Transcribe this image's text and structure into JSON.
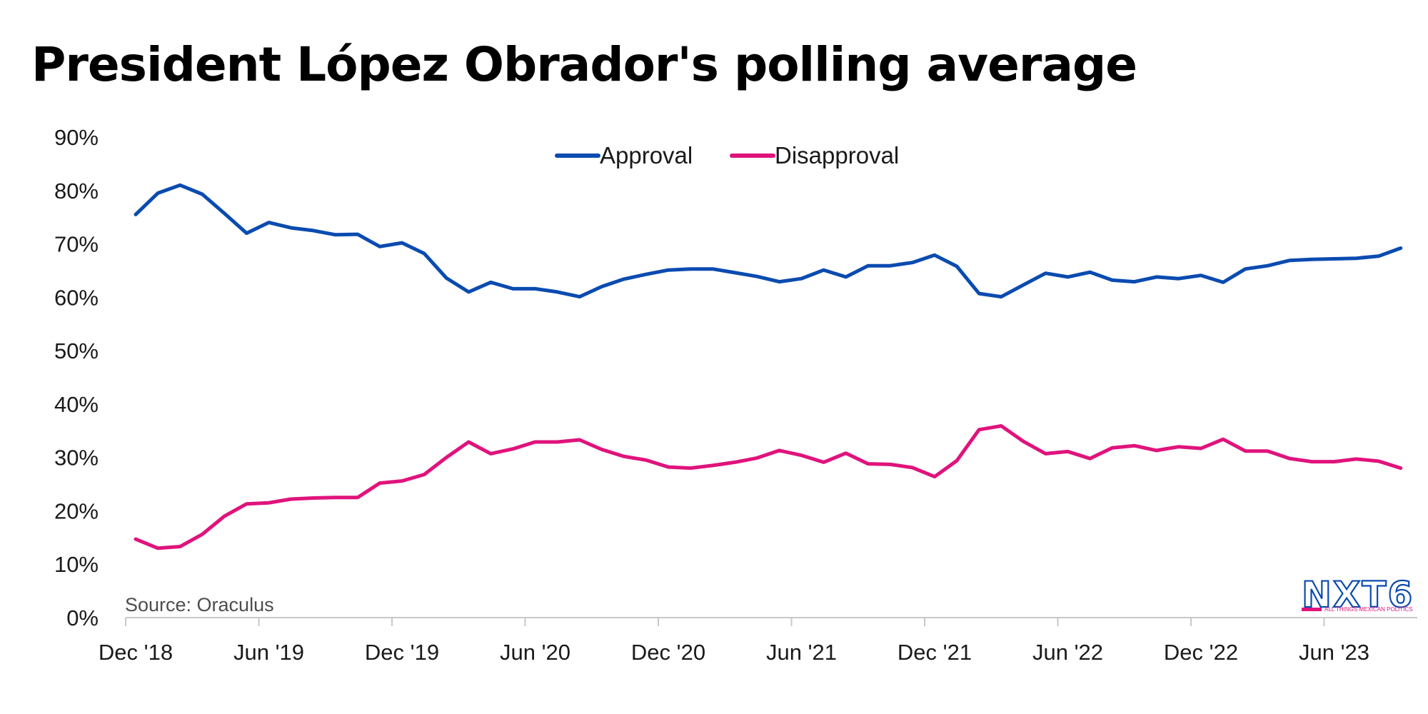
{
  "chart_data": {
    "type": "line",
    "title": "President López Obrador's polling average",
    "source": "Source: Oraculus",
    "ylim": [
      0,
      90
    ],
    "y_ticks": [
      "0%",
      "10%",
      "20%",
      "30%",
      "40%",
      "50%",
      "60%",
      "70%",
      "80%",
      "90%"
    ],
    "x_ticks": [
      "Dec '18",
      "Jun '19",
      "Dec '19",
      "Jun '20",
      "Dec '20",
      "Jun '21",
      "Dec '21",
      "Jun '22",
      "Dec '22",
      "Jun '23"
    ],
    "legend_position": "top-center",
    "grid": false,
    "x": [
      "Dec '18",
      "Jan '19",
      "Feb '19",
      "Mar '19",
      "Apr '19",
      "May '19",
      "Jun '19",
      "Jul '19",
      "Aug '19",
      "Sep '19",
      "Oct '19",
      "Nov '19",
      "Dec '19",
      "Jan '20",
      "Feb '20",
      "Mar '20",
      "Apr '20",
      "May '20",
      "Jun '20",
      "Jul '20",
      "Aug '20",
      "Sep '20",
      "Oct '20",
      "Nov '20",
      "Dec '20",
      "Jan '21",
      "Feb '21",
      "Mar '21",
      "Apr '21",
      "May '21",
      "Jun '21",
      "Jul '21",
      "Aug '21",
      "Sep '21",
      "Oct '21",
      "Nov '21",
      "Dec '21",
      "Jan '22",
      "Feb '22",
      "Mar '22",
      "Apr '22",
      "May '22",
      "Jun '22",
      "Jul '22",
      "Aug '22",
      "Sep '22",
      "Oct '22",
      "Nov '22",
      "Dec '22",
      "Jan '23",
      "Feb '23",
      "Mar '23",
      "Apr '23",
      "May '23",
      "Jun '23",
      "Jul '23",
      "Aug '23",
      "Sep '23"
    ],
    "series": [
      {
        "name": "Approval",
        "color": "#0a4bb0",
        "values": [
          75.5,
          79.5,
          81,
          79.3,
          75.7,
          72,
          74,
          73,
          72.5,
          71.7,
          71.8,
          69.5,
          70.2,
          68.2,
          63.6,
          61,
          62.8,
          61.6,
          61.6,
          61,
          60.1,
          62,
          63.4,
          64.3,
          65.1,
          65.3,
          65.3,
          64.6,
          63.9,
          62.9,
          63.5,
          65.1,
          63.8,
          65.9,
          65.9,
          66.5,
          67.9,
          65.8,
          60.7,
          60.1,
          62.3,
          64.5,
          63.8,
          64.7,
          63.2,
          62.9,
          63.8,
          63.5,
          64.1,
          62.8,
          65.3,
          65.9,
          66.9,
          67.1,
          67.2,
          67.3,
          67.7,
          69.2
        ]
      },
      {
        "name": "Disapproval",
        "color": "#e0137c",
        "values": [
          14.7,
          13,
          13.3,
          15.6,
          19,
          21.3,
          21.5,
          22.2,
          22.4,
          22.5,
          22.5,
          25.2,
          25.6,
          26.8,
          30,
          32.9,
          30.7,
          31.6,
          32.9,
          32.9,
          33.3,
          31.5,
          30.2,
          29.5,
          28.2,
          28,
          28.5,
          29.1,
          29.9,
          31.3,
          30.4,
          29.1,
          30.8,
          28.8,
          28.7,
          28.1,
          26.4,
          29.4,
          35.2,
          35.9,
          33,
          30.7,
          31.1,
          29.8,
          31.8,
          32.2,
          31.3,
          32,
          31.7,
          33.4,
          31.2,
          31.2,
          29.8,
          29.2,
          29.2,
          29.7,
          29.3,
          28
        ]
      }
    ]
  },
  "logo": {
    "text": "NXT6",
    "tagline": "ALL THINGS MEXICAN POLITICS",
    "color": "#0a4bb0",
    "accent": "#e0137c"
  }
}
